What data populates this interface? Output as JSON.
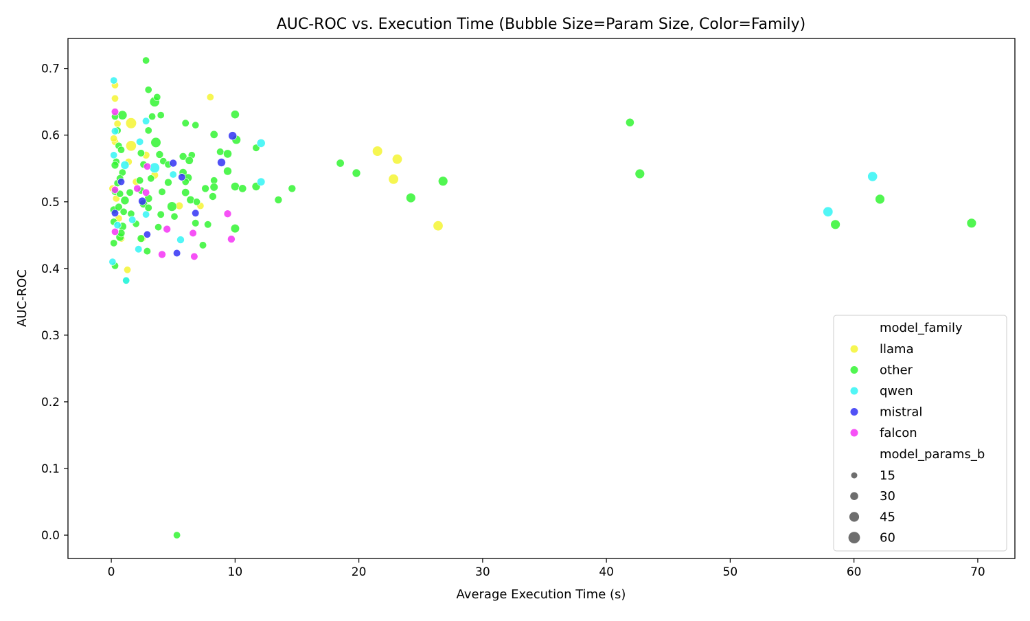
{
  "chart_data": {
    "type": "scatter",
    "title": "AUC-ROC vs. Execution Time (Bubble Size=Param Size, Color=Family)",
    "xlabel": "Average Execution Time (s)",
    "ylabel": "AUC-ROC",
    "xlim": [
      -3.5,
      73
    ],
    "ylim": [
      -0.035,
      0.745
    ],
    "xticks": [
      0,
      10,
      20,
      30,
      40,
      50,
      60,
      70
    ],
    "yticks": [
      0.0,
      0.1,
      0.2,
      0.3,
      0.4,
      0.5,
      0.6,
      0.7
    ],
    "grid": false,
    "legend_position": "lower-right",
    "legend": {
      "hue_title": "model_family",
      "size_title": "model_params_b",
      "size_levels": [
        15,
        30,
        45,
        60
      ],
      "size_color": "#6e6e6e"
    },
    "series": [
      {
        "name": "llama",
        "color": "#f5f532",
        "points": [
          [
            0.3,
            0.675,
            7
          ],
          [
            0.3,
            0.655,
            7
          ],
          [
            0.5,
            0.617,
            7
          ],
          [
            0.3,
            0.59,
            7
          ],
          [
            0.2,
            0.595,
            7
          ],
          [
            0.1,
            0.52,
            7
          ],
          [
            0.4,
            0.505,
            7
          ],
          [
            0.6,
            0.475,
            7
          ],
          [
            0.8,
            0.445,
            7
          ],
          [
            1.3,
            0.398,
            7
          ],
          [
            1.4,
            0.56,
            7
          ],
          [
            1.6,
            0.618,
            48
          ],
          [
            1.6,
            0.584,
            44
          ],
          [
            2.0,
            0.53,
            7
          ],
          [
            2.8,
            0.57,
            10
          ],
          [
            2.5,
            0.445,
            7
          ],
          [
            3.5,
            0.54,
            10
          ],
          [
            5.5,
            0.494,
            10
          ],
          [
            7.2,
            0.494,
            7
          ],
          [
            8.0,
            0.657,
            7
          ],
          [
            21.5,
            0.576,
            38
          ],
          [
            23.1,
            0.564,
            36
          ],
          [
            22.8,
            0.534,
            38
          ],
          [
            26.4,
            0.464,
            36
          ]
        ]
      },
      {
        "name": "other",
        "color": "#32f532",
        "points": [
          [
            2.8,
            0.712,
            7
          ],
          [
            3.0,
            0.668,
            7
          ],
          [
            3.5,
            0.65,
            36
          ],
          [
            3.7,
            0.657,
            7
          ],
          [
            0.9,
            0.63,
            26
          ],
          [
            0.3,
            0.628,
            7
          ],
          [
            0.5,
            0.607,
            7
          ],
          [
            3.0,
            0.607,
            7
          ],
          [
            4.0,
            0.63,
            7
          ],
          [
            3.3,
            0.628,
            7
          ],
          [
            3.6,
            0.589,
            38
          ],
          [
            6.0,
            0.618,
            8
          ],
          [
            6.8,
            0.615,
            7
          ],
          [
            10.0,
            0.631,
            18
          ],
          [
            8.3,
            0.601,
            12
          ],
          [
            10.1,
            0.593,
            22
          ],
          [
            0.6,
            0.584,
            7
          ],
          [
            0.4,
            0.56,
            7
          ],
          [
            0.8,
            0.578,
            7
          ],
          [
            2.4,
            0.573,
            8
          ],
          [
            2.6,
            0.556,
            7
          ],
          [
            3.9,
            0.571,
            10
          ],
          [
            4.2,
            0.561,
            7
          ],
          [
            5.8,
            0.568,
            10
          ],
          [
            6.5,
            0.57,
            7
          ],
          [
            6.3,
            0.562,
            14
          ],
          [
            8.8,
            0.575,
            8
          ],
          [
            9.4,
            0.572,
            18
          ],
          [
            11.7,
            0.581,
            8
          ],
          [
            0.9,
            0.544,
            7
          ],
          [
            0.3,
            0.555,
            10
          ],
          [
            4.6,
            0.556,
            7
          ],
          [
            5.8,
            0.544,
            12
          ],
          [
            9.4,
            0.546,
            16
          ],
          [
            0.5,
            0.528,
            7
          ],
          [
            0.7,
            0.535,
            8
          ],
          [
            2.3,
            0.532,
            8
          ],
          [
            3.2,
            0.535,
            7
          ],
          [
            4.6,
            0.529,
            10
          ],
          [
            6.2,
            0.536,
            14
          ],
          [
            6.0,
            0.53,
            7
          ],
          [
            8.3,
            0.532,
            7
          ],
          [
            10.0,
            0.523,
            18
          ],
          [
            10.6,
            0.52,
            12
          ],
          [
            11.7,
            0.523,
            16
          ],
          [
            7.6,
            0.52,
            10
          ],
          [
            8.3,
            0.522,
            14
          ],
          [
            14.6,
            0.52,
            10
          ],
          [
            18.5,
            0.558,
            12
          ],
          [
            19.8,
            0.543,
            16
          ],
          [
            0.3,
            0.515,
            7
          ],
          [
            0.7,
            0.512,
            7
          ],
          [
            1.1,
            0.502,
            18
          ],
          [
            1.5,
            0.514,
            8
          ],
          [
            2.4,
            0.517,
            7
          ],
          [
            3.0,
            0.505,
            12
          ],
          [
            4.1,
            0.515,
            8
          ],
          [
            6.0,
            0.514,
            12
          ],
          [
            6.4,
            0.503,
            12
          ],
          [
            8.2,
            0.508,
            10
          ],
          [
            13.5,
            0.503,
            10
          ],
          [
            0.2,
            0.488,
            10
          ],
          [
            0.6,
            0.492,
            10
          ],
          [
            1.0,
            0.485,
            7
          ],
          [
            1.6,
            0.482,
            7
          ],
          [
            2.6,
            0.497,
            14
          ],
          [
            3.0,
            0.491,
            8
          ],
          [
            4.9,
            0.493,
            30
          ],
          [
            5.1,
            0.478,
            7
          ],
          [
            6.9,
            0.5,
            7
          ],
          [
            0.2,
            0.47,
            7
          ],
          [
            0.9,
            0.463,
            16
          ],
          [
            2.0,
            0.467,
            7
          ],
          [
            3.8,
            0.462,
            7
          ],
          [
            4.0,
            0.481,
            8
          ],
          [
            6.8,
            0.468,
            8
          ],
          [
            7.8,
            0.466,
            8
          ],
          [
            10.0,
            0.46,
            20
          ],
          [
            0.2,
            0.438,
            7
          ],
          [
            0.7,
            0.447,
            14
          ],
          [
            0.8,
            0.453,
            10
          ],
          [
            2.4,
            0.445,
            10
          ],
          [
            7.4,
            0.435,
            8
          ],
          [
            2.9,
            0.426,
            8
          ],
          [
            0.3,
            0.404,
            7
          ],
          [
            1.2,
            0.382,
            7
          ],
          [
            5.3,
            0.0,
            7
          ],
          [
            24.2,
            0.506,
            30
          ],
          [
            26.8,
            0.531,
            30
          ],
          [
            41.9,
            0.619,
            18
          ],
          [
            42.7,
            0.542,
            30
          ],
          [
            58.5,
            0.466,
            30
          ],
          [
            62.1,
            0.504,
            30
          ],
          [
            69.5,
            0.468,
            30
          ]
        ]
      },
      {
        "name": "qwen",
        "color": "#32f5f5",
        "points": [
          [
            0.2,
            0.682,
            7
          ],
          [
            0.2,
            0.57,
            7
          ],
          [
            0.3,
            0.606,
            8
          ],
          [
            0.5,
            0.465,
            8
          ],
          [
            1.1,
            0.555,
            18
          ],
          [
            1.7,
            0.473,
            8
          ],
          [
            2.3,
            0.59,
            8
          ],
          [
            2.8,
            0.621,
            8
          ],
          [
            2.2,
            0.429,
            8
          ],
          [
            2.8,
            0.481,
            7
          ],
          [
            3.5,
            0.551,
            38
          ],
          [
            5.0,
            0.541,
            7
          ],
          [
            5.6,
            0.443,
            10
          ],
          [
            12.1,
            0.588,
            18
          ],
          [
            12.1,
            0.53,
            14
          ],
          [
            0.1,
            0.41,
            7
          ],
          [
            1.2,
            0.382,
            7
          ],
          [
            57.9,
            0.485,
            36
          ],
          [
            61.5,
            0.538,
            34
          ]
        ]
      },
      {
        "name": "mistral",
        "color": "#3232f5",
        "points": [
          [
            0.3,
            0.483,
            8
          ],
          [
            0.8,
            0.53,
            7
          ],
          [
            2.5,
            0.501,
            12
          ],
          [
            2.9,
            0.451,
            7
          ],
          [
            5.0,
            0.558,
            10
          ],
          [
            5.7,
            0.537,
            8
          ],
          [
            6.8,
            0.483,
            8
          ],
          [
            5.3,
            0.423,
            8
          ],
          [
            8.9,
            0.559,
            16
          ],
          [
            9.8,
            0.599,
            18
          ]
        ]
      },
      {
        "name": "falcon",
        "color": "#f532f5",
        "points": [
          [
            0.3,
            0.635,
            8
          ],
          [
            0.3,
            0.455,
            7
          ],
          [
            0.3,
            0.518,
            7
          ],
          [
            2.1,
            0.52,
            8
          ],
          [
            2.8,
            0.514,
            8
          ],
          [
            2.9,
            0.553,
            7
          ],
          [
            4.1,
            0.421,
            10
          ],
          [
            4.5,
            0.459,
            10
          ],
          [
            6.6,
            0.453,
            8
          ],
          [
            6.7,
            0.418,
            8
          ],
          [
            9.4,
            0.482,
            10
          ],
          [
            9.7,
            0.444,
            10
          ]
        ]
      }
    ]
  }
}
